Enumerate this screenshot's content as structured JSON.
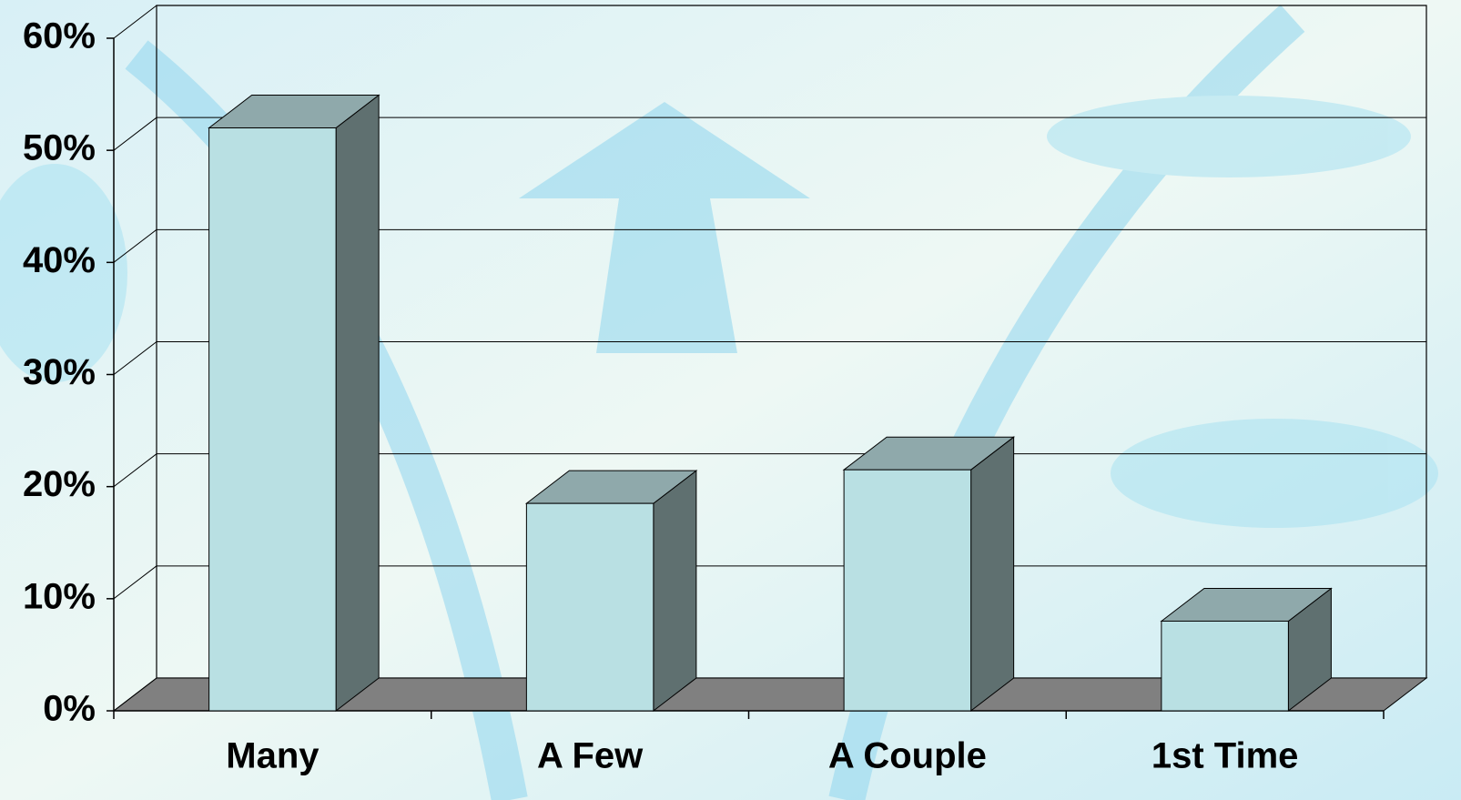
{
  "chart_data": {
    "type": "bar3d",
    "categories": [
      "Many",
      "A Few",
      "A Couple",
      "1st Time"
    ],
    "values": [
      52,
      18.5,
      21.5,
      8
    ],
    "colors": {
      "front": "#b9e0e3",
      "side": "#5f7070",
      "top": "#8fa9ab",
      "floor": "#808080"
    },
    "ylim": [
      0,
      60
    ],
    "yticks": [
      {
        "value": 0,
        "label": "0%"
      },
      {
        "value": 10,
        "label": "10%"
      },
      {
        "value": 20,
        "label": "20%"
      },
      {
        "value": 30,
        "label": "30%"
      },
      {
        "value": 40,
        "label": "40%"
      },
      {
        "value": 50,
        "label": "50%"
      },
      {
        "value": 60,
        "label": "60%"
      }
    ],
    "grid": true
  }
}
